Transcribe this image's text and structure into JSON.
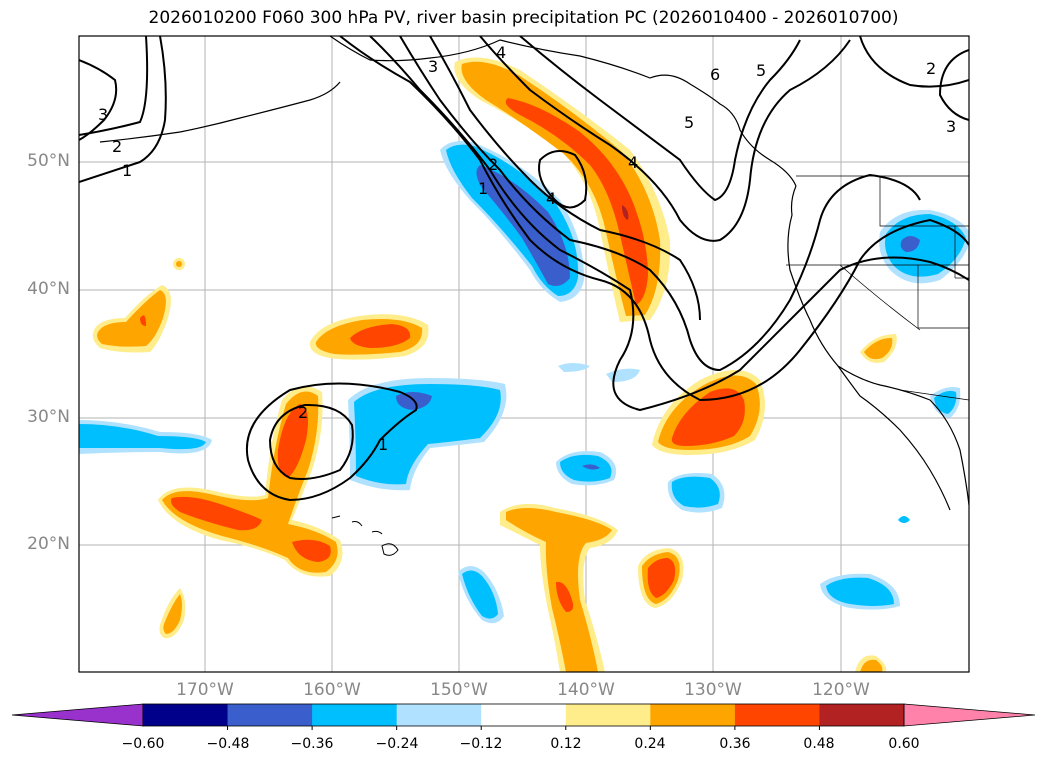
{
  "title": "2026010200 F060 300 hPa PV, river basin precipitation PC (2026010400 - 2026010700)",
  "lat_labels": [
    "50°N",
    "40°N",
    "30°N",
    "20°N"
  ],
  "lon_labels": [
    "170°W",
    "160°W",
    "150°W",
    "140°W",
    "130°W",
    "120°W"
  ],
  "contour_labels": [
    "1",
    "2",
    "3",
    "4",
    "5",
    "6"
  ],
  "colorbar": {
    "ticks": [
      "−0.60",
      "−0.48",
      "−0.36",
      "−0.24",
      "−0.12",
      "0.12",
      "0.24",
      "0.36",
      "0.48",
      "0.60"
    ],
    "colors": [
      "#9932cc",
      "#00008b",
      "#3a5fcd",
      "#00bfff",
      "#b0e2ff",
      "#ffffff",
      "#ffec8b",
      "#ffa500",
      "#ff4500",
      "#b22222",
      "#ff82ab"
    ],
    "extend": "both"
  },
  "colors": {
    "map_background": "#ffffff",
    "gridline": "#b3b3b3",
    "axis_label": "#888888",
    "contour": "#000000"
  }
}
